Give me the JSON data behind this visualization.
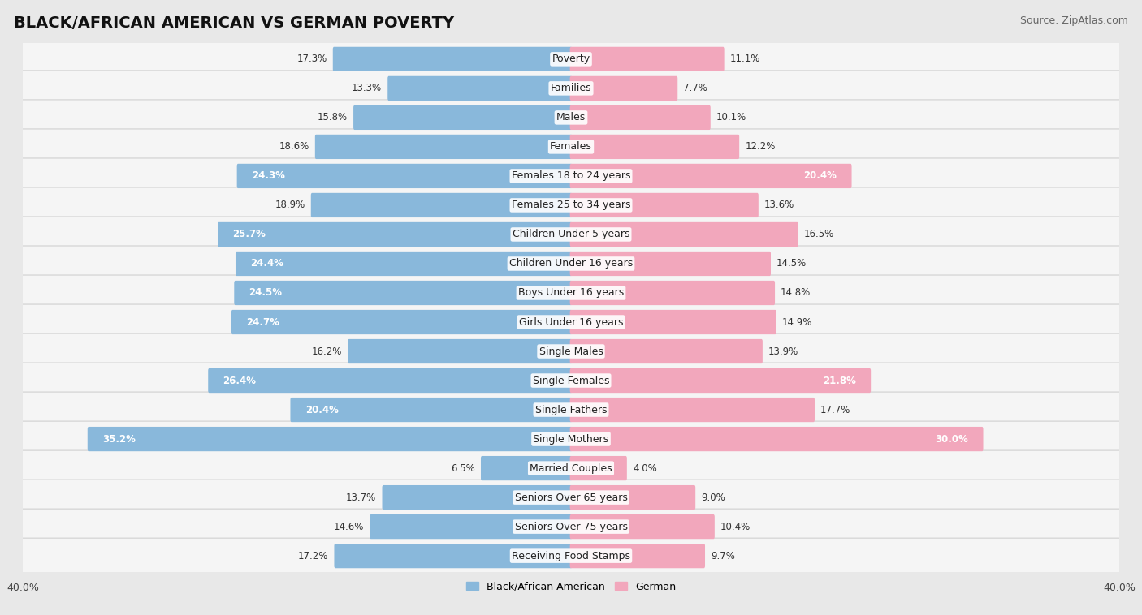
{
  "title": "BLACK/AFRICAN AMERICAN VS GERMAN POVERTY",
  "source": "Source: ZipAtlas.com",
  "categories": [
    "Poverty",
    "Families",
    "Males",
    "Females",
    "Females 18 to 24 years",
    "Females 25 to 34 years",
    "Children Under 5 years",
    "Children Under 16 years",
    "Boys Under 16 years",
    "Girls Under 16 years",
    "Single Males",
    "Single Females",
    "Single Fathers",
    "Single Mothers",
    "Married Couples",
    "Seniors Over 65 years",
    "Seniors Over 75 years",
    "Receiving Food Stamps"
  ],
  "black_values": [
    17.3,
    13.3,
    15.8,
    18.6,
    24.3,
    18.9,
    25.7,
    24.4,
    24.5,
    24.7,
    16.2,
    26.4,
    20.4,
    35.2,
    6.5,
    13.7,
    14.6,
    17.2
  ],
  "german_values": [
    11.1,
    7.7,
    10.1,
    12.2,
    20.4,
    13.6,
    16.5,
    14.5,
    14.8,
    14.9,
    13.9,
    21.8,
    17.7,
    30.0,
    4.0,
    9.0,
    10.4,
    9.7
  ],
  "black_color": "#89b8db",
  "german_color": "#f2a7bc",
  "black_label": "Black/African American",
  "german_label": "German",
  "x_max": 40.0,
  "background_color": "#e8e8e8",
  "row_bg_color": "#f5f5f5",
  "title_fontsize": 14,
  "source_fontsize": 9,
  "label_fontsize": 9,
  "value_fontsize": 8.5,
  "axis_label_fontsize": 9
}
